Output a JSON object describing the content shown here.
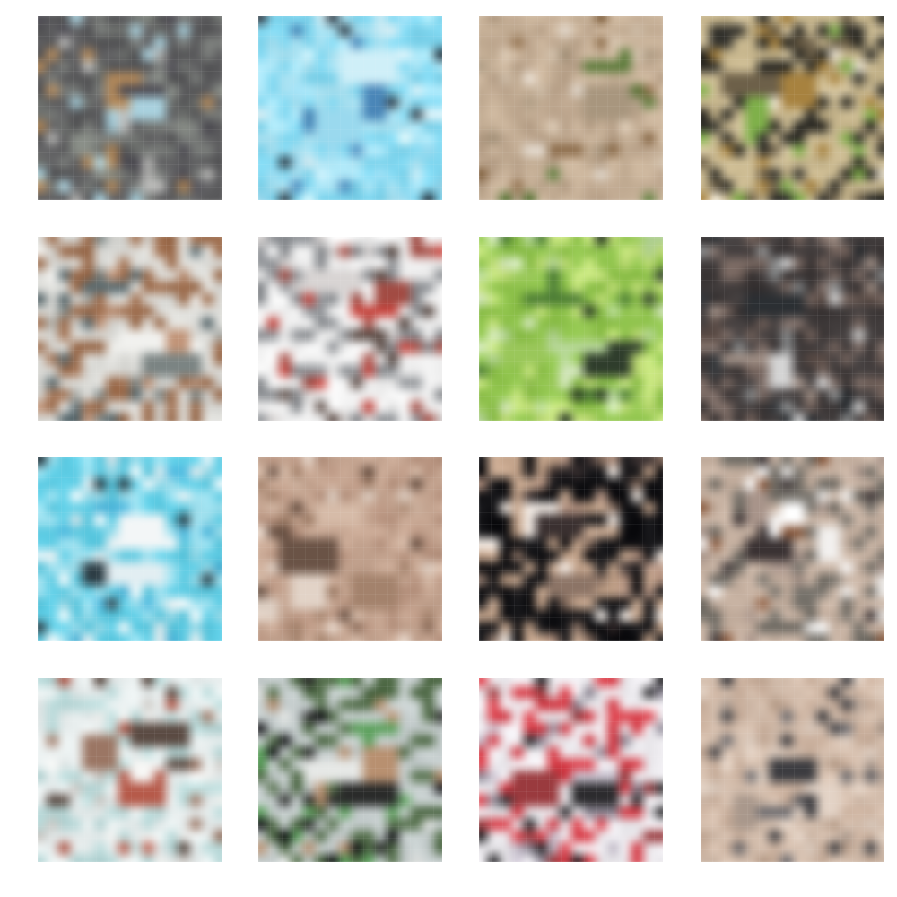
{
  "samples": [
    {
      "palette": [
        "#5a5a5c",
        "#767976",
        "#8a8f88",
        "#b58a5a",
        "#a9d1de",
        "#4c4a52",
        "#b9b9b7"
      ]
    },
    {
      "palette": [
        "#7fd6ef",
        "#aee6f6",
        "#cfeff8",
        "#4a86b8",
        "#2f3a44",
        "#9ad9ee",
        "#e4f6fb"
      ]
    },
    {
      "palette": [
        "#c9b39a",
        "#b9a28a",
        "#5b7a3a",
        "#e6ddd2",
        "#8a6a48",
        "#a8967e",
        "#d8c7b2"
      ]
    },
    {
      "palette": [
        "#c9b88f",
        "#2b2a25",
        "#a7823f",
        "#7fb04a",
        "#d9c9a3",
        "#6d6049",
        "#efe8d8"
      ]
    },
    {
      "palette": [
        "#dcdcd8",
        "#9b6a4a",
        "#596a6f",
        "#c19478",
        "#7b8483",
        "#f1f1ee",
        "#a7aaa6"
      ]
    },
    {
      "palette": [
        "#f4f4f4",
        "#8a8d91",
        "#c9443d",
        "#5a4a44",
        "#d8d4d3",
        "#a24b43",
        "#eeeeee"
      ]
    },
    {
      "palette": [
        "#8fc34c",
        "#c6e37d",
        "#4b7b35",
        "#2f3d2c",
        "#b8d89a",
        "#9ac75a",
        "#dceec7"
      ]
    },
    {
      "palette": [
        "#3f3a3a",
        "#7b6a63",
        "#a39288",
        "#2b2f33",
        "#d4d4d4",
        "#5a4b45",
        "#8a8c8d"
      ]
    },
    {
      "palette": [
        "#5ccbe3",
        "#9fe0ee",
        "#f3f6f7",
        "#2d3d45",
        "#e2eef2",
        "#48b2d8",
        "#ffffff"
      ]
    },
    {
      "palette": [
        "#c8a894",
        "#b89480",
        "#6a5346",
        "#e2d3c7",
        "#a3826c",
        "#d6bba8",
        "#8d6e5c"
      ]
    },
    {
      "palette": [
        "#0f0f12",
        "#c8a88f",
        "#b59482",
        "#f5eee8",
        "#3a3030",
        "#8c7466",
        "#1e1c1e"
      ]
    },
    {
      "palette": [
        "#c9b4a4",
        "#6f6b64",
        "#f2f0ee",
        "#3a3233",
        "#a8948a",
        "#ffffff",
        "#8a5a3e"
      ]
    },
    {
      "palette": [
        "#e9efef",
        "#b7d8d8",
        "#9b7664",
        "#b65a4a",
        "#f7f7f5",
        "#5a4a42",
        "#c9c6c2"
      ]
    },
    {
      "palette": [
        "#c7cfcf",
        "#4f6a46",
        "#b89070",
        "#2a2b2a",
        "#5aa05a",
        "#e6e8e6",
        "#0e0e12"
      ]
    },
    {
      "palette": [
        "#efedf1",
        "#d83a45",
        "#2c2b2e",
        "#8c8794",
        "#c9c2cf",
        "#9a3a3e",
        "#f6f3f7"
      ]
    },
    {
      "palette": [
        "#d5bfae",
        "#c7ad9a",
        "#e3d3c6",
        "#6b6a6e",
        "#a9988c",
        "#3c3c40",
        "#b49a86"
      ]
    }
  ]
}
